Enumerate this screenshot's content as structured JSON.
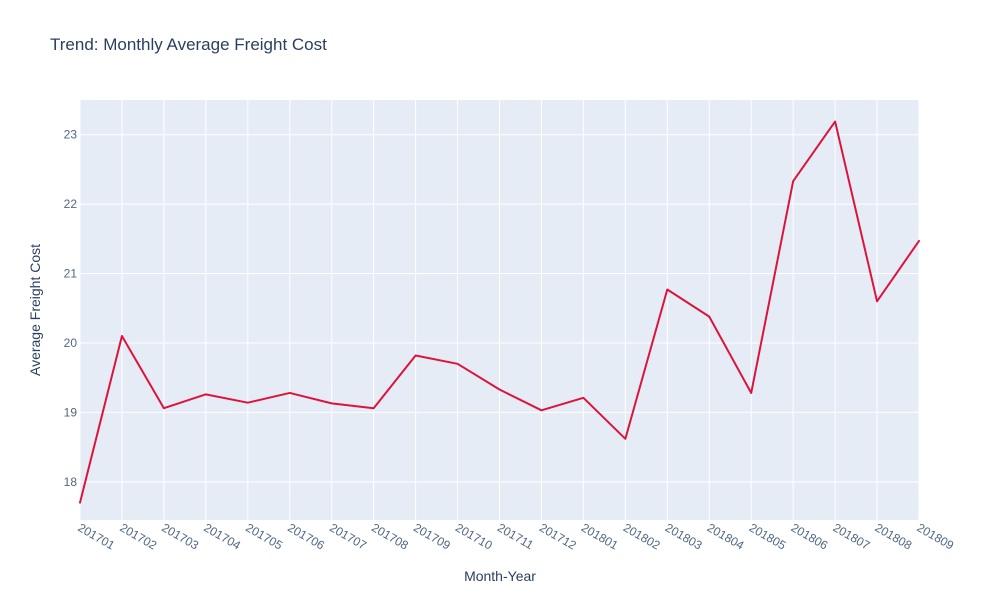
{
  "chart_data": {
    "type": "line",
    "title": "Trend: Monthly Average Freight Cost",
    "xlabel": "Month-Year",
    "ylabel": "Average Freight Cost",
    "categories": [
      "201701",
      "201702",
      "201703",
      "201704",
      "201705",
      "201706",
      "201707",
      "201708",
      "201709",
      "201710",
      "201711",
      "201712",
      "201801",
      "201802",
      "201803",
      "201804",
      "201805",
      "201806",
      "201807",
      "201808",
      "201809"
    ],
    "series": [
      {
        "values": [
          17.7,
          20.1,
          19.06,
          19.26,
          19.14,
          19.28,
          19.13,
          19.06,
          19.82,
          19.7,
          19.33,
          19.03,
          19.21,
          18.62,
          20.77,
          20.38,
          19.28,
          22.33,
          23.19,
          20.6,
          21.47
        ]
      }
    ],
    "ylim": [
      17.45,
      23.5
    ],
    "yticks": [
      18,
      19,
      20,
      21,
      22,
      23
    ],
    "grid": true,
    "colors": {
      "line": "#dc143c",
      "plot_bg": "#e5ecf6"
    }
  }
}
